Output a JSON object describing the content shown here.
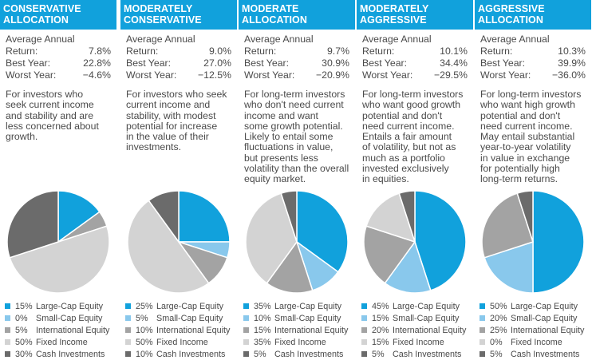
{
  "colors": {
    "header": "#11a1dc",
    "large_cap": "#11a1dc",
    "small_cap": "#89c8ec",
    "international": "#a3a3a3",
    "fixed_income": "#d3d3d3",
    "cash": "#6b6b6b"
  },
  "labels": {
    "average_annual_return": "Average Annual Return:",
    "best_year": "Best Year:",
    "worst_year": "Worst Year:"
  },
  "chart_data": [
    {
      "type": "pie",
      "title": "CONSERVATIVE ALLOCATION",
      "average_annual_return": "7.8%",
      "best_year": "22.8%",
      "worst_year": "−4.6%",
      "description_lines": [
        "For investors who",
        "seek current income",
        "and stability and are",
        "less concerned about",
        "growth."
      ],
      "categories": [
        "Large-Cap Equity",
        "Small-Cap Equity",
        "International Equity",
        "Fixed Income",
        "Cash Investments"
      ],
      "values": [
        15,
        0,
        5,
        50,
        30
      ],
      "percent_labels": [
        "15%",
        "0%",
        "5%",
        "50%",
        "30%"
      ]
    },
    {
      "type": "pie",
      "title": "MODERATELY CONSERVATIVE",
      "average_annual_return": "9.0%",
      "best_year": "27.0%",
      "worst_year": "−12.5%",
      "description_lines": [
        "For investors who seek",
        "current income and",
        "stability, with modest",
        "potential for increase",
        "in the value of their",
        "investments."
      ],
      "categories": [
        "Large-Cap Equity",
        "Small-Cap Equity",
        "International Equity",
        "Fixed Income",
        "Cash Investments"
      ],
      "values": [
        25,
        5,
        10,
        50,
        10
      ],
      "percent_labels": [
        "25%",
        "5%",
        "10%",
        "50%",
        "10%"
      ]
    },
    {
      "type": "pie",
      "title": "MODERATE ALLOCATION",
      "average_annual_return": "9.7%",
      "best_year": "30.9%",
      "worst_year": "−20.9%",
      "description_lines": [
        "For long-term investors",
        "who don't need current",
        "income and want",
        "some growth potential.",
        "Likely to entail some",
        "fluctuations in value,",
        "but presents less",
        "volatility than the overall",
        "equity market."
      ],
      "categories": [
        "Large-Cap Equity",
        "Small-Cap Equity",
        "International Equity",
        "Fixed Income",
        "Cash Investments"
      ],
      "values": [
        35,
        10,
        15,
        35,
        5
      ],
      "percent_labels": [
        "35%",
        "10%",
        "15%",
        "35%",
        "5%"
      ]
    },
    {
      "type": "pie",
      "title": "MODERATELY AGGRESSIVE",
      "average_annual_return": "10.1%",
      "best_year": "34.4%",
      "worst_year": "−29.5%",
      "description_lines": [
        "For long-term investors",
        "who want good growth",
        "potential and don't",
        "need current income.",
        "Entails a fair amount",
        "of volatility, but not as",
        "much as a portfolio",
        "invested exclusively",
        "in equities."
      ],
      "categories": [
        "Large-Cap Equity",
        "Small-Cap Equity",
        "International Equity",
        "Fixed Income",
        "Cash Investments"
      ],
      "values": [
        45,
        15,
        20,
        15,
        5
      ],
      "percent_labels": [
        "45%",
        "15%",
        "20%",
        "15%",
        "5%"
      ]
    },
    {
      "type": "pie",
      "title": "AGGRESSIVE ALLOCATION",
      "average_annual_return": "10.3%",
      "best_year": "39.9%",
      "worst_year": "−36.0%",
      "description_lines": [
        "For long-term investors",
        "who want high growth",
        "potential and don't",
        "need current income.",
        "May entail substantial",
        "year-to-year volatility",
        "in value in exchange",
        "for potentially high",
        "long-term returns."
      ],
      "categories": [
        "Large-Cap Equity",
        "Small-Cap Equity",
        "International Equity",
        "Fixed Income",
        "Cash Investments"
      ],
      "values": [
        50,
        20,
        25,
        0,
        5
      ],
      "percent_labels": [
        "50%",
        "20%",
        "25%",
        "0%",
        "5%"
      ]
    }
  ]
}
